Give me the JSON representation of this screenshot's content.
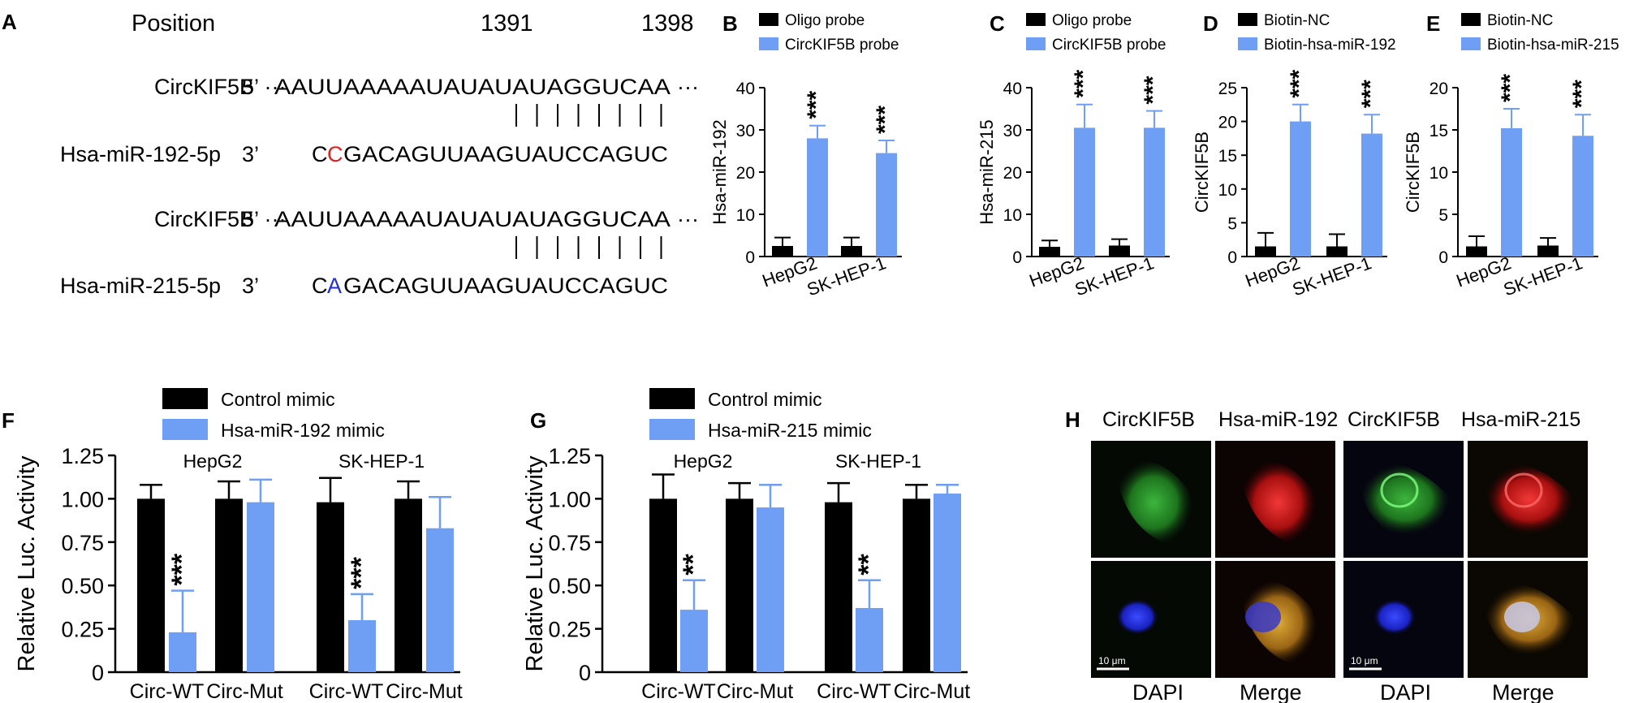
{
  "colors": {
    "black": "#000000",
    "blue": "#6f9ef5",
    "red": "#e11f1f",
    "mutblue": "#1f2fd1"
  },
  "panel_a": {
    "letter": "A",
    "position_label": "Position",
    "pos_start": "1391",
    "pos_end": "1398",
    "rows": [
      {
        "name": "CircKIF5B",
        "dir": "5’ ···",
        "seq": "AAUUAAAAAUAUAUAUAGGUCAA",
        "tail": "···"
      },
      {
        "name": "Hsa-miR-192-5p",
        "dir": "3’",
        "seq_first": "C",
        "seq_mut": "C",
        "seq_rest": "GACAGUUAAGUAUCCAGUC"
      },
      {
        "name": "CircKIF5B",
        "dir": "5’ ···",
        "seq": "AAUUAAAAAUAUAUAUAGGUCAA",
        "tail": "···"
      },
      {
        "name": "Hsa-miR-215-5p",
        "dir": "3’",
        "seq_first": "C",
        "seq_mut": "A",
        "seq_rest": "GACAGUUAAGUAUCCAGUC"
      }
    ]
  },
  "panel_h": {
    "letter": "H",
    "headers": [
      "CircKIF5B",
      "Hsa-miR-192",
      "CircKIF5B",
      "Hsa-miR-215"
    ],
    "footers": [
      "DAPI",
      "Merge",
      "DAPI",
      "Merge"
    ],
    "scale": [
      "10 μm",
      "10 μm"
    ]
  },
  "chart_data": [
    {
      "id": "B",
      "type": "bar",
      "categories": [
        "HepG2",
        "SK-HEP-1"
      ],
      "series": [
        {
          "name": "Oligo probe",
          "values": [
            2.5,
            2.5
          ],
          "errors": [
            2,
            2
          ]
        },
        {
          "name": "CircKIF5B probe",
          "values": [
            28,
            24.5
          ],
          "errors": [
            3,
            3
          ]
        }
      ],
      "ylabel": "Hsa-miR-192",
      "ylim": [
        0,
        40
      ],
      "yticks": [
        0,
        10,
        20,
        30,
        40
      ],
      "annotations": [
        "***",
        "***"
      ]
    },
    {
      "id": "C",
      "type": "bar",
      "categories": [
        "HepG2",
        "SK-HEP-1"
      ],
      "series": [
        {
          "name": "Oligo probe",
          "values": [
            2.3,
            2.6
          ],
          "errors": [
            1.5,
            1.5
          ]
        },
        {
          "name": "CircKIF5B probe",
          "values": [
            30.5,
            30.5
          ],
          "errors": [
            5.5,
            4
          ]
        }
      ],
      "ylabel": "Hsa-miR-215",
      "ylim": [
        0,
        40
      ],
      "yticks": [
        0,
        10,
        20,
        30,
        40
      ],
      "annotations": [
        "***",
        "***"
      ]
    },
    {
      "id": "D",
      "type": "bar",
      "categories": [
        "HepG2",
        "SK-HEP-1"
      ],
      "series": [
        {
          "name": "Biotin-NC",
          "values": [
            1.5,
            1.5
          ],
          "errors": [
            2,
            1.8
          ]
        },
        {
          "name": "Biotin-hsa-miR-192",
          "values": [
            20,
            18.2
          ],
          "errors": [
            2.5,
            2.8
          ]
        }
      ],
      "ylabel": "CircKIF5B",
      "ylim": [
        0,
        25
      ],
      "yticks": [
        0,
        5,
        10,
        15,
        20,
        25
      ],
      "annotations": [
        "***",
        "***"
      ]
    },
    {
      "id": "E",
      "type": "bar",
      "categories": [
        "HepG2",
        "SK-HEP-1"
      ],
      "series": [
        {
          "name": "Biotin-NC",
          "values": [
            1.2,
            1.3
          ],
          "errors": [
            1.2,
            0.9
          ]
        },
        {
          "name": "Biotin-hsa-miR-215",
          "values": [
            15.2,
            14.3
          ],
          "errors": [
            2.3,
            2.5
          ]
        }
      ],
      "ylabel": "CircKIF5B",
      "ylim": [
        0,
        20
      ],
      "yticks": [
        0,
        5,
        10,
        15,
        20
      ],
      "annotations": [
        "***",
        "***"
      ]
    },
    {
      "id": "F",
      "type": "bar",
      "categories": [
        "Circ-WT",
        "Circ-Mut",
        "Circ-WT",
        "Circ-Mut"
      ],
      "groups": [
        "HepG2",
        "SK-HEP-1"
      ],
      "series": [
        {
          "name": "Control mimic",
          "values": [
            1.0,
            1.0,
            0.98,
            1.0
          ],
          "errors": [
            0.08,
            0.1,
            0.14,
            0.1
          ]
        },
        {
          "name": "Hsa-miR-192 mimic",
          "values": [
            0.23,
            0.98,
            0.3,
            0.83
          ],
          "errors": [
            0.24,
            0.13,
            0.15,
            0.18
          ]
        }
      ],
      "ylabel": "Relative Luc. Activity",
      "ylim": [
        0,
        1.25
      ],
      "yticks": [
        "0",
        "0.25",
        "0.50",
        "0.75",
        "1.00",
        "1.25"
      ],
      "annotations": [
        "***",
        "",
        "***",
        ""
      ]
    },
    {
      "id": "G",
      "type": "bar",
      "categories": [
        "Circ-WT",
        "Circ-Mut",
        "Circ-WT",
        "Circ-Mut"
      ],
      "groups": [
        "HepG2",
        "SK-HEP-1"
      ],
      "series": [
        {
          "name": "Control mimic",
          "values": [
            1.0,
            1.0,
            0.98,
            1.0
          ],
          "errors": [
            0.14,
            0.09,
            0.11,
            0.08
          ]
        },
        {
          "name": "Hsa-miR-215 mimic",
          "values": [
            0.36,
            0.95,
            0.37,
            1.03
          ],
          "errors": [
            0.17,
            0.13,
            0.16,
            0.05
          ]
        }
      ],
      "ylabel": "Relative Luc. Activity",
      "ylim": [
        0,
        1.25
      ],
      "yticks": [
        "0",
        "0.25",
        "0.50",
        "0.75",
        "1.00",
        "1.25"
      ],
      "annotations": [
        "**",
        "",
        "**",
        ""
      ]
    }
  ]
}
